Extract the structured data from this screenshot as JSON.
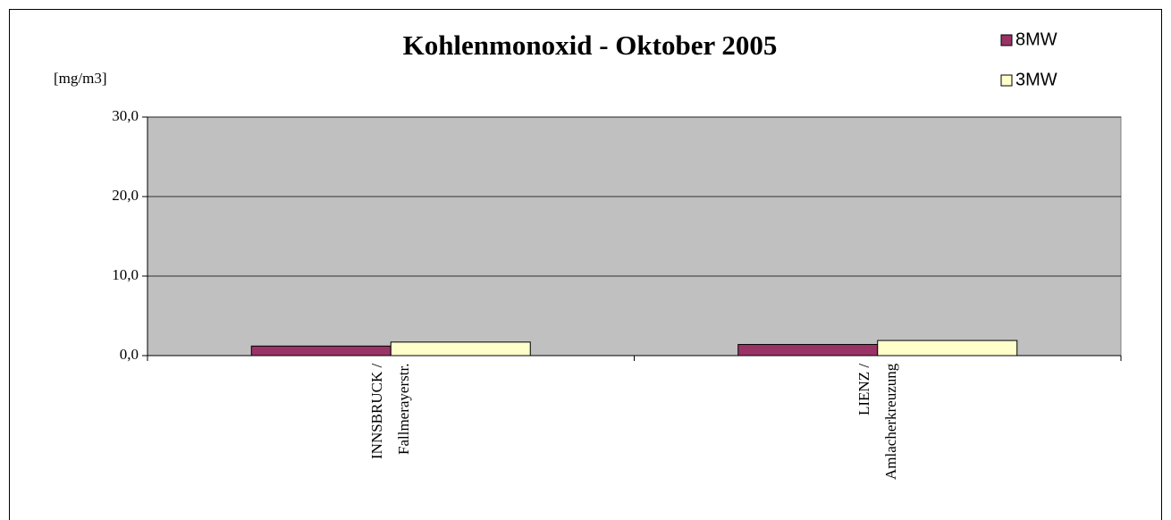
{
  "chart_data": {
    "type": "bar",
    "title": "Kohlenmonoxid - Oktober 2005",
    "y_label": "[mg/m3]",
    "categories": [
      "INNSBRUCK / Fallmerayerstr.",
      "LIENZ / Amlacherkreuzung"
    ],
    "series": [
      {
        "name": "8MW",
        "color": "#993366",
        "values": [
          1.2,
          1.4
        ]
      },
      {
        "name": "3MW",
        "color": "#ffffcc",
        "values": [
          1.7,
          1.9
        ]
      }
    ],
    "ylim": [
      0,
      30
    ],
    "yticks": [
      {
        "value": 0,
        "label": "0,0"
      },
      {
        "value": 10,
        "label": "10,0"
      },
      {
        "value": 20,
        "label": "20,0"
      },
      {
        "value": 30,
        "label": "30,0"
      }
    ],
    "grid": true,
    "legend": "top-right",
    "plot_background": "#c0c0c0"
  }
}
